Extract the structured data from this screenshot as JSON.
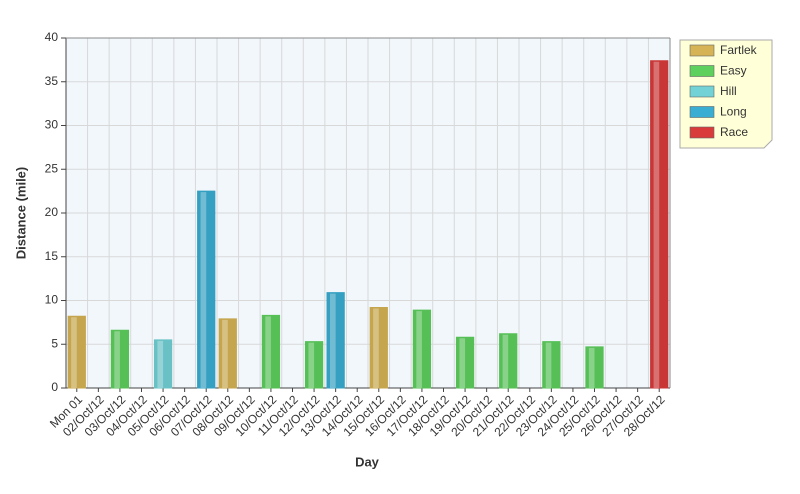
{
  "chart_data": {
    "type": "bar",
    "x_label": "Day",
    "y_label": "Distance (mile)",
    "categories": [
      "Mon 01",
      "02/Oct/12",
      "03/Oct/12",
      "04/Oct/12",
      "05/Oct/12",
      "06/Oct/12",
      "07/Oct/12",
      "08/Oct/12",
      "09/Oct/12",
      "10/Oct/12",
      "11/Oct/12",
      "12/Oct/12",
      "13/Oct/12",
      "14/Oct/12",
      "15/Oct/12",
      "16/Oct/12",
      "17/Oct/12",
      "18/Oct/12",
      "19/Oct/12",
      "20/Oct/12",
      "21/Oct/12",
      "22/Oct/12",
      "23/Oct/12",
      "24/Oct/12",
      "25/Oct/12",
      "26/Oct/12",
      "27/Oct/12",
      "28/Oct/12"
    ],
    "series": [
      {
        "name": "Fartlek",
        "color": "#d6b455",
        "values": [
          8.2,
          null,
          null,
          null,
          null,
          null,
          null,
          7.9,
          null,
          null,
          null,
          null,
          null,
          null,
          9.2,
          null,
          null,
          null,
          null,
          null,
          null,
          null,
          null,
          null,
          null,
          null,
          null,
          null
        ]
      },
      {
        "name": "Easy",
        "color": "#5dd05d",
        "values": [
          null,
          null,
          6.6,
          null,
          null,
          null,
          null,
          null,
          null,
          8.3,
          null,
          5.3,
          null,
          null,
          null,
          null,
          8.9,
          null,
          5.8,
          null,
          6.2,
          null,
          5.3,
          null,
          4.7,
          null,
          null,
          null
        ]
      },
      {
        "name": "Hill",
        "color": "#72d2d6",
        "values": [
          null,
          null,
          null,
          null,
          5.5,
          null,
          null,
          null,
          null,
          null,
          null,
          null,
          null,
          null,
          null,
          null,
          null,
          null,
          null,
          null,
          null,
          null,
          null,
          null,
          null,
          null,
          null,
          null
        ]
      },
      {
        "name": "Long",
        "color": "#3aaed2",
        "values": [
          null,
          null,
          null,
          null,
          null,
          null,
          22.5,
          null,
          null,
          null,
          null,
          null,
          10.9,
          null,
          null,
          null,
          null,
          null,
          null,
          null,
          null,
          null,
          null,
          null,
          null,
          null,
          null,
          null
        ]
      },
      {
        "name": "Race",
        "color": "#d93b3b",
        "values": [
          null,
          null,
          null,
          null,
          null,
          null,
          null,
          null,
          null,
          null,
          null,
          null,
          null,
          null,
          null,
          null,
          null,
          null,
          null,
          null,
          null,
          null,
          null,
          null,
          null,
          null,
          null,
          37.4
        ]
      }
    ],
    "ylim": [
      0,
      40
    ],
    "yticks": [
      0,
      5,
      10,
      15,
      20,
      25,
      30,
      35,
      40
    ],
    "grid": true,
    "legend": "right"
  }
}
